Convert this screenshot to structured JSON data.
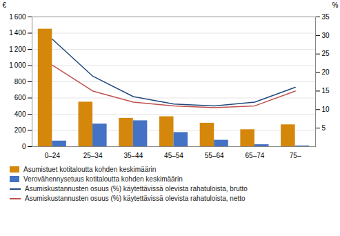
{
  "chart_data": {
    "type": "bar",
    "categories": [
      "0–24",
      "25–34",
      "35–44",
      "45–54",
      "55–64",
      "65–74",
      "75–"
    ],
    "series": [
      {
        "name": "Asumistuet kotitaloutta kohden keskimäärin",
        "type": "bar",
        "color": "#D4870A",
        "values": [
          1450,
          550,
          350,
          370,
          290,
          210,
          270
        ]
      },
      {
        "name": "Verovähennysetuus kotitaloutta kohden keskimäärin",
        "type": "bar",
        "color": "#4472C4",
        "values": [
          70,
          280,
          320,
          175,
          80,
          25,
          10
        ]
      },
      {
        "name": "Asumiskustannusten osuus (%) käytettävissä olevista rahatuloista, brutto",
        "type": "line",
        "axis": "y2",
        "color": "#1F497D",
        "values": [
          29,
          19,
          13.5,
          11.5,
          11,
          12,
          16
        ]
      },
      {
        "name": "Asumiskustannusten osuus (%) käytettävissä olevista rahatuloista, netto",
        "type": "line",
        "axis": "y2",
        "color": "#C0504D",
        "values": [
          22,
          15,
          12,
          11,
          10.5,
          11,
          15
        ]
      }
    ],
    "ylabel": "€",
    "y2label": "%",
    "ylim": [
      0,
      1600
    ],
    "yticks": [
      0,
      200,
      400,
      600,
      800,
      {
        "value": 1000,
        "label": "1 000"
      },
      {
        "value": 1200,
        "label": "1 200"
      },
      {
        "value": 1400,
        "label": "1 400"
      },
      {
        "value": 1600,
        "label": "1 600"
      }
    ],
    "y2lim": [
      0,
      35
    ],
    "y2ticks": [
      5,
      10,
      15,
      20,
      25,
      30,
      35
    ],
    "grid": true,
    "legend": "lower left"
  }
}
